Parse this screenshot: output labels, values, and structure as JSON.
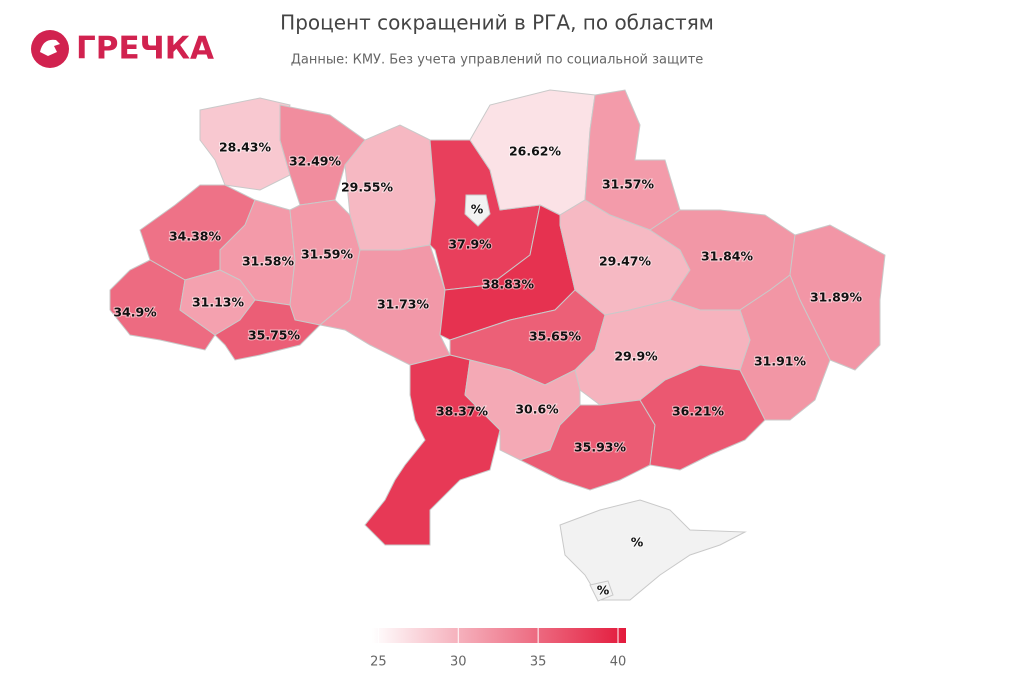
{
  "chart_data": {
    "type": "choropleth",
    "title": "Процент сокращений в РГА, по областям",
    "subtitle": "Данные: КМУ. Без учета управлений по социальной защите",
    "logo": "ГРЕЧКА",
    "values": [
      28.43,
      32.49,
      29.55,
      37.9,
      null,
      26.62,
      31.57,
      34.38,
      31.58,
      31.59,
      34.9,
      31.13,
      35.75,
      31.73,
      38.83,
      29.47,
      31.84,
      31.89,
      31.91,
      35.65,
      29.9,
      38.37,
      30.6,
      35.93,
      36.21,
      null,
      null
    ],
    "value_labels": [
      "28.43%",
      "32.49%",
      "29.55%",
      "37.9%",
      "%",
      "26.62%",
      "31.57%",
      "34.38%",
      "31.58%",
      "31.59%",
      "34.9%",
      "31.13%",
      "35.75%",
      "31.73%",
      "38.83%",
      "29.47%",
      "31.84%",
      "31.89%",
      "31.91%",
      "35.65%",
      "29.9%",
      "38.37%",
      "30.6%",
      "35.93%",
      "36.21%",
      "%",
      "%"
    ],
    "colors": [
      "#ffffff",
      "#e31a3c"
    ],
    "missing_color": "#f2f2f2",
    "clim": [
      24.6,
      40.5
    ],
    "cticks": [
      25,
      30,
      35,
      40
    ]
  }
}
